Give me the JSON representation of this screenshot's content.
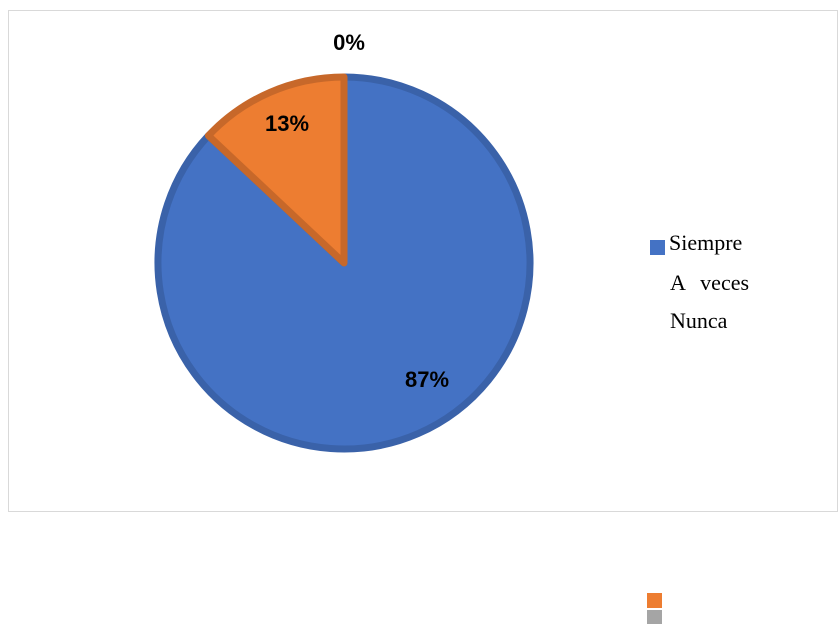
{
  "chart_data": {
    "type": "pie",
    "categories": [
      "Siempre",
      "A veces",
      "Nunca"
    ],
    "values": [
      87,
      13,
      0
    ],
    "data_labels": [
      "87%",
      "13%",
      "0%"
    ],
    "colors": [
      "#4472c4",
      "#ed7d31",
      "#a5a5a5"
    ],
    "legend_position": "right"
  }
}
